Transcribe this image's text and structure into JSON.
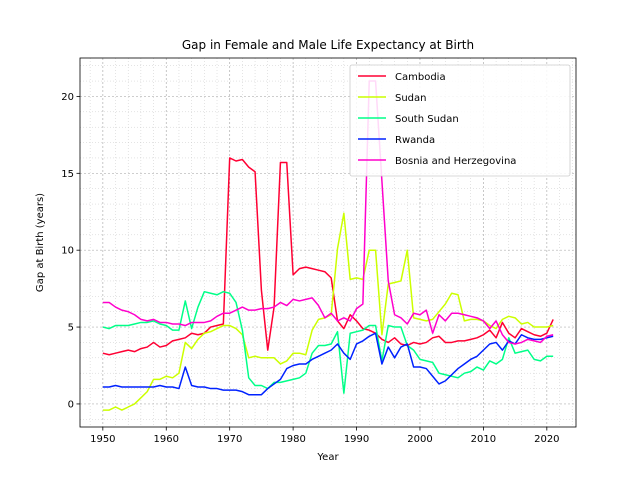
{
  "chart_data": {
    "type": "line",
    "title": "Gap in Female and Male Life Expectancy at Birth",
    "xlabel": "Year",
    "ylabel": "Gap at Birth (years)",
    "xlim": [
      1946.4,
      2024.6
    ],
    "ylim": [
      -1.5,
      22.5
    ],
    "x_ticks": [
      1950,
      1960,
      1970,
      1980,
      1990,
      2000,
      2010,
      2020
    ],
    "y_ticks": [
      0,
      5,
      10,
      15,
      20
    ],
    "x_minor_step": 2,
    "y_minor_step": 1,
    "grid": true,
    "grid_style": "dotted",
    "legend_position": "upper right",
    "series": [
      {
        "name": "Cambodia",
        "color": "#ff0033",
        "x": [
          1950,
          1951,
          1952,
          1953,
          1954,
          1955,
          1956,
          1957,
          1958,
          1959,
          1960,
          1961,
          1962,
          1963,
          1964,
          1965,
          1966,
          1967,
          1968,
          1969,
          1970,
          1971,
          1972,
          1973,
          1974,
          1975,
          1976,
          1977,
          1978,
          1979,
          1980,
          1981,
          1982,
          1983,
          1984,
          1985,
          1986,
          1987,
          1988,
          1989,
          1990,
          1991,
          1992,
          1993,
          1994,
          1995,
          1996,
          1997,
          1998,
          1999,
          2000,
          2001,
          2002,
          2003,
          2004,
          2005,
          2006,
          2007,
          2008,
          2009,
          2010,
          2011,
          2012,
          2013,
          2014,
          2015,
          2016,
          2017,
          2018,
          2019,
          2020,
          2021
        ],
        "y": [
          3.3,
          3.2,
          3.3,
          3.4,
          3.5,
          3.4,
          3.6,
          3.7,
          4.0,
          3.7,
          3.8,
          4.1,
          4.2,
          4.3,
          4.6,
          4.5,
          4.6,
          5.0,
          5.1,
          5.2,
          16.0,
          15.8,
          15.9,
          15.4,
          15.1,
          7.4,
          3.5,
          6.3,
          15.7,
          15.7,
          8.4,
          8.8,
          8.9,
          8.8,
          8.7,
          8.6,
          8.2,
          5.4,
          4.9,
          5.8,
          5.4,
          4.9,
          4.8,
          4.6,
          4.2,
          4.0,
          4.3,
          3.9,
          3.8,
          4.0,
          3.9,
          4.0,
          4.3,
          4.4,
          4.0,
          4.0,
          4.1,
          4.1,
          4.2,
          4.3,
          4.5,
          4.8,
          4.3,
          5.3,
          4.6,
          4.3,
          4.9,
          4.7,
          4.5,
          4.4,
          4.6,
          5.5
        ]
      },
      {
        "name": "Sudan",
        "color": "#ccff00",
        "x": [
          1950,
          1951,
          1952,
          1953,
          1954,
          1955,
          1956,
          1957,
          1958,
          1959,
          1960,
          1961,
          1962,
          1963,
          1964,
          1965,
          1966,
          1967,
          1968,
          1969,
          1970,
          1971,
          1972,
          1973,
          1974,
          1975,
          1976,
          1977,
          1978,
          1979,
          1980,
          1981,
          1982,
          1983,
          1984,
          1985,
          1986,
          1987,
          1988,
          1989,
          1990,
          1991,
          1992,
          1993,
          1994,
          1995,
          1996,
          1997,
          1998,
          1999,
          2000,
          2001,
          2002,
          2003,
          2004,
          2005,
          2006,
          2007,
          2008,
          2009,
          2010,
          2011,
          2012,
          2013,
          2014,
          2015,
          2016,
          2017,
          2018,
          2019,
          2020,
          2021
        ],
        "y": [
          -0.4,
          -0.4,
          -0.2,
          -0.4,
          -0.2,
          0.0,
          0.4,
          0.8,
          1.6,
          1.6,
          1.8,
          1.7,
          2.0,
          4.0,
          3.6,
          4.2,
          4.6,
          4.7,
          4.9,
          5.1,
          5.1,
          4.9,
          4.5,
          3.0,
          3.1,
          3.0,
          3.0,
          3.0,
          2.6,
          2.8,
          3.3,
          3.3,
          3.2,
          4.8,
          5.5,
          5.6,
          5.8,
          10.1,
          12.4,
          8.1,
          8.2,
          8.1,
          10.0,
          10.0,
          4.5,
          7.8,
          7.9,
          8.0,
          10.0,
          5.6,
          5.5,
          5.4,
          5.5,
          6.0,
          6.5,
          7.2,
          7.1,
          5.4,
          5.5,
          5.5,
          5.4,
          5.1,
          4.9,
          5.5,
          5.7,
          5.6,
          5.2,
          5.3,
          5.0,
          5.0,
          5.0,
          5.1
        ]
      },
      {
        "name": "South Sudan",
        "color": "#00ff88",
        "x": [
          1950,
          1951,
          1952,
          1953,
          1954,
          1955,
          1956,
          1957,
          1958,
          1959,
          1960,
          1961,
          1962,
          1963,
          1964,
          1965,
          1966,
          1967,
          1968,
          1969,
          1970,
          1971,
          1972,
          1973,
          1974,
          1975,
          1976,
          1977,
          1978,
          1979,
          1980,
          1981,
          1982,
          1983,
          1984,
          1985,
          1986,
          1987,
          1988,
          1989,
          1990,
          1991,
          1992,
          1993,
          1994,
          1995,
          1996,
          1997,
          1998,
          1999,
          2000,
          2001,
          2002,
          2003,
          2004,
          2005,
          2006,
          2007,
          2008,
          2009,
          2010,
          2011,
          2012,
          2013,
          2014,
          2015,
          2016,
          2017,
          2018,
          2019,
          2020,
          2021
        ],
        "y": [
          5.0,
          4.9,
          5.1,
          5.1,
          5.1,
          5.2,
          5.3,
          5.3,
          5.4,
          5.2,
          5.1,
          4.8,
          4.8,
          6.7,
          4.9,
          6.3,
          7.3,
          7.2,
          7.1,
          7.3,
          7.2,
          6.6,
          4.8,
          1.7,
          1.2,
          1.2,
          1.0,
          1.4,
          1.4,
          1.5,
          1.6,
          1.7,
          2.0,
          3.3,
          3.8,
          3.8,
          3.9,
          4.7,
          0.7,
          4.6,
          4.7,
          4.8,
          5.1,
          5.1,
          2.8,
          5.1,
          5.0,
          5.0,
          3.8,
          3.5,
          2.9,
          2.8,
          2.7,
          2.0,
          1.9,
          1.8,
          1.7,
          2.0,
          2.1,
          2.4,
          2.2,
          2.8,
          2.6,
          2.9,
          4.3,
          3.3,
          3.4,
          3.5,
          2.9,
          2.8,
          3.1,
          3.1
        ]
      },
      {
        "name": "Rwanda",
        "color": "#0022ff",
        "x": [
          1950,
          1951,
          1952,
          1953,
          1954,
          1955,
          1956,
          1957,
          1958,
          1959,
          1960,
          1961,
          1962,
          1963,
          1964,
          1965,
          1966,
          1967,
          1968,
          1969,
          1970,
          1971,
          1972,
          1973,
          1974,
          1975,
          1976,
          1977,
          1978,
          1979,
          1980,
          1981,
          1982,
          1983,
          1984,
          1985,
          1986,
          1987,
          1988,
          1989,
          1990,
          1991,
          1992,
          1993,
          1994,
          1995,
          1996,
          1997,
          1998,
          1999,
          2000,
          2001,
          2002,
          2003,
          2004,
          2005,
          2006,
          2007,
          2008,
          2009,
          2010,
          2011,
          2012,
          2013,
          2014,
          2015,
          2016,
          2017,
          2018,
          2019,
          2020,
          2021
        ],
        "y": [
          1.1,
          1.1,
          1.2,
          1.1,
          1.1,
          1.1,
          1.1,
          1.1,
          1.1,
          1.2,
          1.1,
          1.1,
          1.0,
          2.4,
          1.2,
          1.1,
          1.1,
          1.0,
          1.0,
          0.9,
          0.9,
          0.9,
          0.8,
          0.6,
          0.6,
          0.6,
          1.0,
          1.3,
          1.6,
          2.3,
          2.5,
          2.6,
          2.6,
          2.9,
          3.1,
          3.3,
          3.5,
          3.9,
          3.3,
          2.9,
          3.9,
          4.1,
          4.4,
          4.6,
          2.6,
          3.7,
          3.0,
          3.7,
          3.9,
          2.4,
          2.4,
          2.3,
          1.8,
          1.3,
          1.5,
          1.9,
          2.3,
          2.6,
          2.9,
          3.1,
          3.5,
          3.9,
          4.0,
          3.5,
          4.1,
          3.9,
          4.5,
          4.3,
          4.2,
          4.2,
          4.3,
          4.4
        ]
      },
      {
        "name": "Bosnia and Herzegovina",
        "color": "#ff00cc",
        "x": [
          1950,
          1951,
          1952,
          1953,
          1954,
          1955,
          1956,
          1957,
          1958,
          1959,
          1960,
          1961,
          1962,
          1963,
          1964,
          1965,
          1966,
          1967,
          1968,
          1969,
          1970,
          1971,
          1972,
          1973,
          1974,
          1975,
          1976,
          1977,
          1978,
          1979,
          1980,
          1981,
          1982,
          1983,
          1984,
          1985,
          1986,
          1987,
          1988,
          1989,
          1990,
          1991,
          1992,
          1993,
          1994,
          1995,
          1996,
          1997,
          1998,
          1999,
          2000,
          2001,
          2002,
          2003,
          2004,
          2005,
          2006,
          2007,
          2008,
          2009,
          2010,
          2011,
          2012,
          2013,
          2014,
          2015,
          2016,
          2017,
          2018,
          2019,
          2020,
          2021
        ],
        "y": [
          6.6,
          6.6,
          6.3,
          6.1,
          6.0,
          5.8,
          5.5,
          5.4,
          5.5,
          5.3,
          5.3,
          5.2,
          5.2,
          5.1,
          5.3,
          5.3,
          5.3,
          5.4,
          5.7,
          5.9,
          5.9,
          6.1,
          6.3,
          6.1,
          6.1,
          6.2,
          6.2,
          6.3,
          6.6,
          6.4,
          6.8,
          6.7,
          6.8,
          6.9,
          6.4,
          5.6,
          5.9,
          5.4,
          5.6,
          5.4,
          6.2,
          6.5,
          21.0,
          21.0,
          14.5,
          8.0,
          5.8,
          5.6,
          5.2,
          5.9,
          5.8,
          6.1,
          4.6,
          5.8,
          5.4,
          5.9,
          5.9,
          5.8,
          5.7,
          5.6,
          5.4,
          4.9,
          5.4,
          4.5,
          4.0,
          3.9,
          4.0,
          4.2,
          4.1,
          4.0,
          4.4,
          4.5
        ]
      }
    ]
  }
}
